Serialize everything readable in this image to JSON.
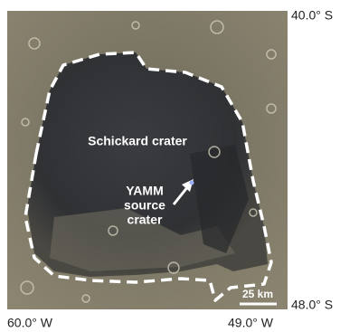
{
  "map": {
    "latitude_labels": [
      "40.0° S",
      "48.0° S"
    ],
    "longitude_labels": [
      "60.0° W",
      "49.0° W"
    ],
    "crater_label": "Schickard crater",
    "source_label": [
      "YAMM",
      "source",
      "crater"
    ],
    "scale_bar": "25 km"
  }
}
